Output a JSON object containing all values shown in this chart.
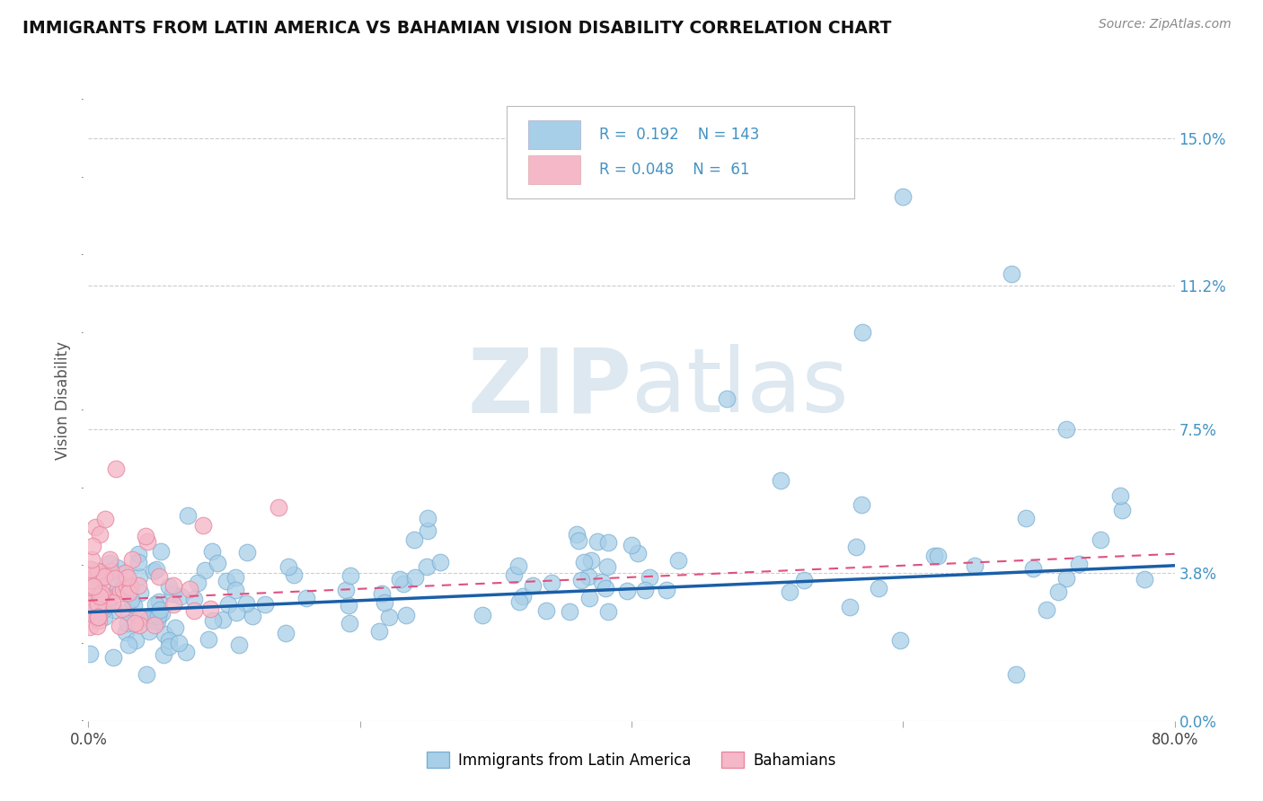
{
  "title": "IMMIGRANTS FROM LATIN AMERICA VS BAHAMIAN VISION DISABILITY CORRELATION CHART",
  "source": "Source: ZipAtlas.com",
  "ylabel": "Vision Disability",
  "xlim": [
    0.0,
    0.8
  ],
  "ylim": [
    0.0,
    0.165
  ],
  "yticks": [
    0.0,
    0.038,
    0.075,
    0.112,
    0.15
  ],
  "ytick_labels": [
    "0.0%",
    "3.8%",
    "7.5%",
    "11.2%",
    "15.0%"
  ],
  "xticks": [
    0.0,
    0.2,
    0.4,
    0.6,
    0.8
  ],
  "xtick_labels": [
    "0.0%",
    "",
    "",
    "",
    "80.0%"
  ],
  "legend_R1": "0.192",
  "legend_N1": "143",
  "legend_R2": "0.048",
  "legend_N2": "61",
  "blue_color": "#a8cfe8",
  "blue_edge_color": "#7bafd4",
  "pink_color": "#f4b8c8",
  "pink_edge_color": "#e888a0",
  "blue_line_color": "#1a5fa8",
  "pink_line_color": "#e05080",
  "grid_color": "#cccccc",
  "title_color": "#111111",
  "label_color": "#4393c3",
  "watermark_color": "#dde8f0"
}
